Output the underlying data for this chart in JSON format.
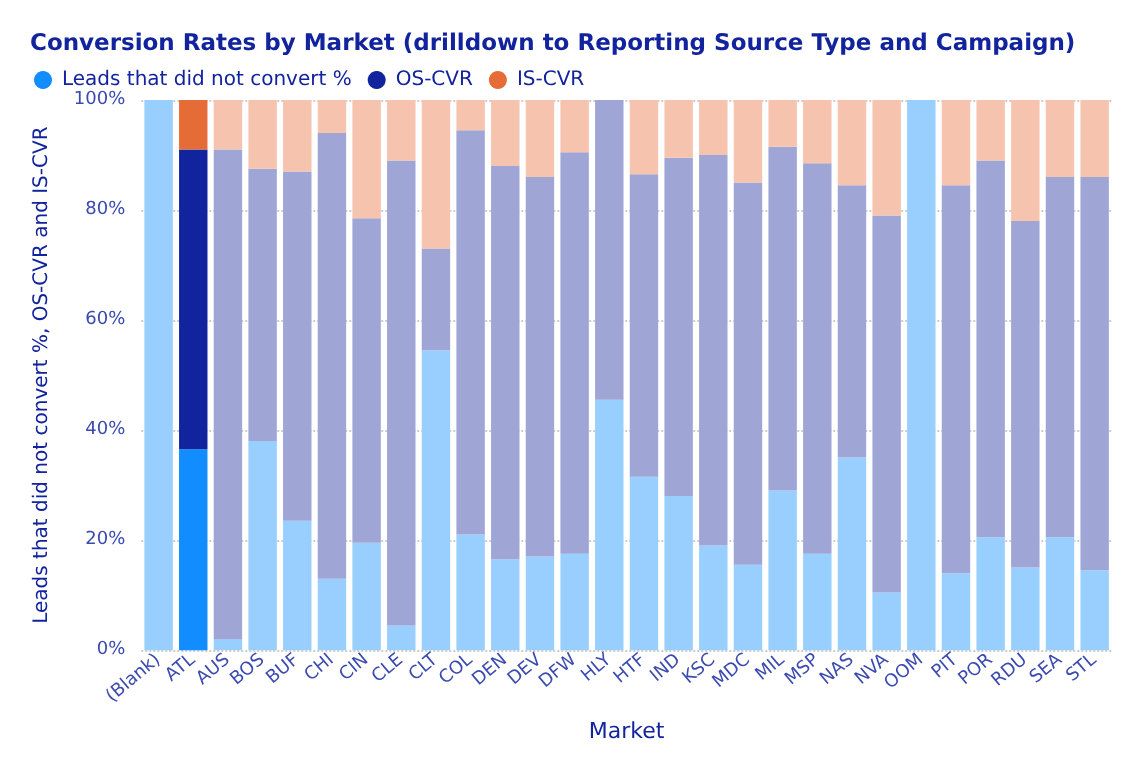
{
  "chart_data": {
    "type": "bar",
    "title": "Conversion Rates by Market (drilldown to Reporting Source Type and Campaign)",
    "xlabel": "Market",
    "ylabel": "Leads that did not convert %, OS-CVR and IS-CVR",
    "stacked": true,
    "legend": "top left",
    "grid": "y",
    "ylim": [
      0,
      100
    ],
    "yticks": [
      {
        "value": 0,
        "label": "0%"
      },
      {
        "value": 20,
        "label": "20%"
      },
      {
        "value": 40,
        "label": "40%"
      },
      {
        "value": 60,
        "label": "60%"
      },
      {
        "value": 80,
        "label": "80%"
      },
      {
        "value": 100,
        "label": "100%"
      }
    ],
    "categories": [
      "(Blank)",
      "ATL",
      "AUS",
      "BOS",
      "BUF",
      "CHI",
      "CIN",
      "CLE",
      "CLT",
      "COL",
      "DEN",
      "DEV",
      "DFW",
      "HLY",
      "HTF",
      "IND",
      "KSC",
      "MDC",
      "MIL",
      "MSP",
      "NAS",
      "NVA",
      "OOM",
      "PIT",
      "POR",
      "RDU",
      "SEA",
      "STL"
    ],
    "series": [
      {
        "name": "Leads that did not convert %",
        "color": "#118dff",
        "colors": [
          "#99cfff",
          "#118dff",
          "#99cfff",
          "#99cfff",
          "#99cfff",
          "#99cfff",
          "#99cfff",
          "#99cfff",
          "#99cfff",
          "#99cfff",
          "#99cfff",
          "#99cfff",
          "#99cfff",
          "#99cfff",
          "#99cfff",
          "#99cfff",
          "#99cfff",
          "#99cfff",
          "#99cfff",
          "#99cfff",
          "#99cfff",
          "#99cfff",
          "#99cfff",
          "#99cfff",
          "#99cfff",
          "#99cfff",
          "#99cfff",
          "#99cfff"
        ],
        "values": [
          100,
          36.5,
          2,
          38,
          23.5,
          13,
          19.5,
          4.5,
          54.5,
          21,
          16.5,
          17,
          17.5,
          45.5,
          31.5,
          28,
          19,
          15.5,
          29,
          17.5,
          35,
          10.5,
          100,
          14,
          20.5,
          15,
          20.5,
          14.5
        ]
      },
      {
        "name": "OS-CVR",
        "color": "#12239e",
        "colors": [
          "#9fa5d4",
          "#12239e",
          "#9fa5d4",
          "#9fa5d4",
          "#9fa5d4",
          "#9fa5d4",
          "#9fa5d4",
          "#9fa5d4",
          "#9fa5d4",
          "#9fa5d4",
          "#9fa5d4",
          "#9fa5d4",
          "#9fa5d4",
          "#9fa5d4",
          "#9fa5d4",
          "#9fa5d4",
          "#9fa5d4",
          "#9fa5d4",
          "#9fa5d4",
          "#9fa5d4",
          "#9fa5d4",
          "#9fa5d4",
          "#9fa5d4",
          "#9fa5d4",
          "#9fa5d4",
          "#9fa5d4",
          "#9fa5d4",
          "#9fa5d4"
        ],
        "values": [
          0,
          54.5,
          89,
          49.5,
          63.5,
          81,
          59,
          84.5,
          18.5,
          73.5,
          71.5,
          69,
          73,
          54.5,
          55,
          61.5,
          71,
          69.5,
          62.5,
          71,
          49.5,
          68.5,
          0,
          70.5,
          68.5,
          63,
          65.5,
          71.5
        ]
      },
      {
        "name": "IS-CVR",
        "color": "#e66c37",
        "colors": [
          "#f6c3ae",
          "#e66c37",
          "#f6c3ae",
          "#f6c3ae",
          "#f6c3ae",
          "#f6c3ae",
          "#f6c3ae",
          "#f6c3ae",
          "#f6c3ae",
          "#f6c3ae",
          "#f6c3ae",
          "#f6c3ae",
          "#f6c3ae",
          "#f6c3ae",
          "#f6c3ae",
          "#f6c3ae",
          "#f6c3ae",
          "#f6c3ae",
          "#f6c3ae",
          "#f6c3ae",
          "#f6c3ae",
          "#f6c3ae",
          "#f6c3ae",
          "#f6c3ae",
          "#f6c3ae",
          "#f6c3ae",
          "#f6c3ae",
          "#f6c3ae"
        ],
        "values": [
          0,
          9,
          9,
          12.5,
          13,
          6,
          21.5,
          11,
          27,
          5.5,
          12,
          14,
          9.5,
          0,
          13.5,
          10.5,
          10,
          15,
          8.5,
          11.5,
          15.5,
          21,
          0,
          15.5,
          11,
          22,
          14,
          14
        ]
      }
    ]
  }
}
